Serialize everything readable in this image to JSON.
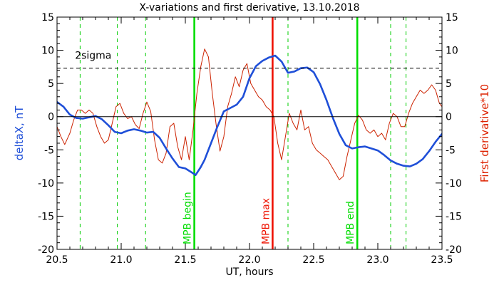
{
  "chart_data": {
    "type": "line",
    "title": "X-variations and first derivative, 13.10.2018",
    "xlabel": "UT, hours",
    "ylabel_left": "deltaX, nT",
    "ylabel_right": "First derivative*10",
    "xlim": [
      20.5,
      23.5
    ],
    "ylim_left": [
      -20,
      15
    ],
    "ylim_right": [
      -20,
      15
    ],
    "x_ticks": [
      "20.5",
      "21.0",
      "21.5",
      "22.0",
      "22.5",
      "23.0",
      "23.5"
    ],
    "y_ticks": [
      "-20",
      "-15",
      "-10",
      "-5",
      "0",
      "5",
      "10",
      "15"
    ],
    "colors": {
      "deltaX": "#1f4fd8",
      "derivative": "#cc2200",
      "mpb_begin_end": "#00dd00",
      "mpb_max": "#ee1100",
      "dashed_marks": "#00cc00",
      "threshold": "#000000",
      "left_label": "#1f4fd8",
      "right_label": "#dd2200"
    },
    "threshold": {
      "y": 7.3,
      "label": "2sigma"
    },
    "zero_line": 0,
    "vertical_markers": [
      {
        "x": 21.57,
        "label": "MPB begin",
        "color": "#00dd00"
      },
      {
        "x": 22.18,
        "label": "MPB max",
        "color": "#ee1100"
      },
      {
        "x": 22.84,
        "label": "MPB end",
        "color": "#00dd00"
      }
    ],
    "dashed_verticals": [
      20.68,
      20.97,
      21.19,
      22.3,
      23.1,
      23.22
    ],
    "series": [
      {
        "name": "deltaX",
        "axis": "left",
        "x": [
          20.5,
          20.55,
          20.6,
          20.65,
          20.7,
          20.75,
          20.8,
          20.85,
          20.9,
          20.95,
          21.0,
          21.05,
          21.1,
          21.15,
          21.2,
          21.25,
          21.3,
          21.35,
          21.4,
          21.45,
          21.5,
          21.55,
          21.58,
          21.62,
          21.65,
          21.7,
          21.75,
          21.8,
          21.85,
          21.9,
          21.95,
          22.0,
          22.05,
          22.1,
          22.15,
          22.2,
          22.25,
          22.3,
          22.35,
          22.4,
          22.45,
          22.5,
          22.55,
          22.6,
          22.65,
          22.7,
          22.75,
          22.8,
          22.85,
          22.9,
          22.95,
          23.0,
          23.05,
          23.1,
          23.15,
          23.2,
          23.25,
          23.3,
          23.35,
          23.4,
          23.45,
          23.5
        ],
        "y": [
          2.2,
          1.5,
          0.3,
          -0.2,
          -0.3,
          -0.1,
          0.1,
          -0.4,
          -1.3,
          -2.3,
          -2.5,
          -2.1,
          -1.9,
          -2.1,
          -2.4,
          -2.3,
          -3.2,
          -4.8,
          -6.3,
          -7.6,
          -7.8,
          -8.4,
          -8.8,
          -7.6,
          -6.5,
          -4.0,
          -1.5,
          0.8,
          1.3,
          1.8,
          3.0,
          5.8,
          7.6,
          8.4,
          8.9,
          9.2,
          8.3,
          6.6,
          6.8,
          7.3,
          7.4,
          6.7,
          4.9,
          2.5,
          -0.2,
          -2.6,
          -4.3,
          -4.8,
          -4.6,
          -4.5,
          -4.8,
          -5.1,
          -5.8,
          -6.6,
          -7.1,
          -7.4,
          -7.5,
          -7.1,
          -6.4,
          -5.2,
          -3.8,
          -2.6
        ]
      },
      {
        "name": "First derivative*10",
        "axis": "right",
        "x": [
          20.5,
          20.53,
          20.56,
          20.6,
          20.63,
          20.66,
          20.69,
          20.72,
          20.75,
          20.78,
          20.81,
          20.84,
          20.87,
          20.9,
          20.93,
          20.96,
          20.99,
          21.02,
          21.05,
          21.08,
          21.11,
          21.14,
          21.17,
          21.2,
          21.23,
          21.26,
          21.29,
          21.32,
          21.35,
          21.38,
          21.41,
          21.44,
          21.47,
          21.5,
          21.53,
          21.56,
          21.59,
          21.62,
          21.65,
          21.68,
          21.71,
          21.74,
          21.77,
          21.8,
          21.83,
          21.86,
          21.89,
          21.92,
          21.95,
          21.98,
          22.01,
          22.04,
          22.07,
          22.1,
          22.13,
          22.16,
          22.19,
          22.22,
          22.25,
          22.28,
          22.31,
          22.34,
          22.37,
          22.4,
          22.43,
          22.46,
          22.49,
          22.52,
          22.55,
          22.58,
          22.61,
          22.64,
          22.67,
          22.7,
          22.73,
          22.76,
          22.79,
          22.82,
          22.85,
          22.88,
          22.91,
          22.94,
          22.97,
          23.0,
          23.03,
          23.06,
          23.09,
          23.12,
          23.15,
          23.18,
          23.21,
          23.24,
          23.27,
          23.3,
          23.33,
          23.36,
          23.39,
          23.42,
          23.45,
          23.48,
          23.5
        ],
        "y": [
          -1.5,
          -3.0,
          -4.2,
          -2.5,
          -0.5,
          1.0,
          1.0,
          0.5,
          1.0,
          0.5,
          -1.5,
          -3.0,
          -4.0,
          -3.5,
          -1.0,
          1.5,
          2.0,
          0.5,
          -0.3,
          0.0,
          -1.2,
          -1.8,
          0.5,
          2.2,
          0.8,
          -3.5,
          -6.5,
          -7.0,
          -5.5,
          -1.5,
          -1.0,
          -4.5,
          -6.5,
          -3.0,
          -6.5,
          -2.0,
          3.5,
          7.5,
          10.2,
          9.0,
          3.5,
          -1.2,
          -5.2,
          -3.0,
          1.5,
          3.5,
          6.0,
          4.5,
          7.0,
          8.0,
          5.0,
          4.0,
          3.0,
          2.5,
          1.5,
          1.0,
          0.0,
          -4.0,
          -6.5,
          -3.0,
          0.5,
          -1.0,
          -2.0,
          1.0,
          -2.0,
          -1.5,
          -4.0,
          -5.0,
          -5.5,
          -6.0,
          -6.5,
          -7.5,
          -8.5,
          -9.5,
          -9.0,
          -6.0,
          -3.5,
          -1.0,
          0.2,
          -0.5,
          -2.0,
          -2.5,
          -2.0,
          -3.0,
          -2.5,
          -3.5,
          -1.0,
          0.5,
          0.0,
          -1.5,
          -1.5,
          0.5,
          2.0,
          3.0,
          4.0,
          3.5,
          4.0,
          4.8,
          4.0,
          2.0,
          1.5
        ]
      }
    ]
  }
}
